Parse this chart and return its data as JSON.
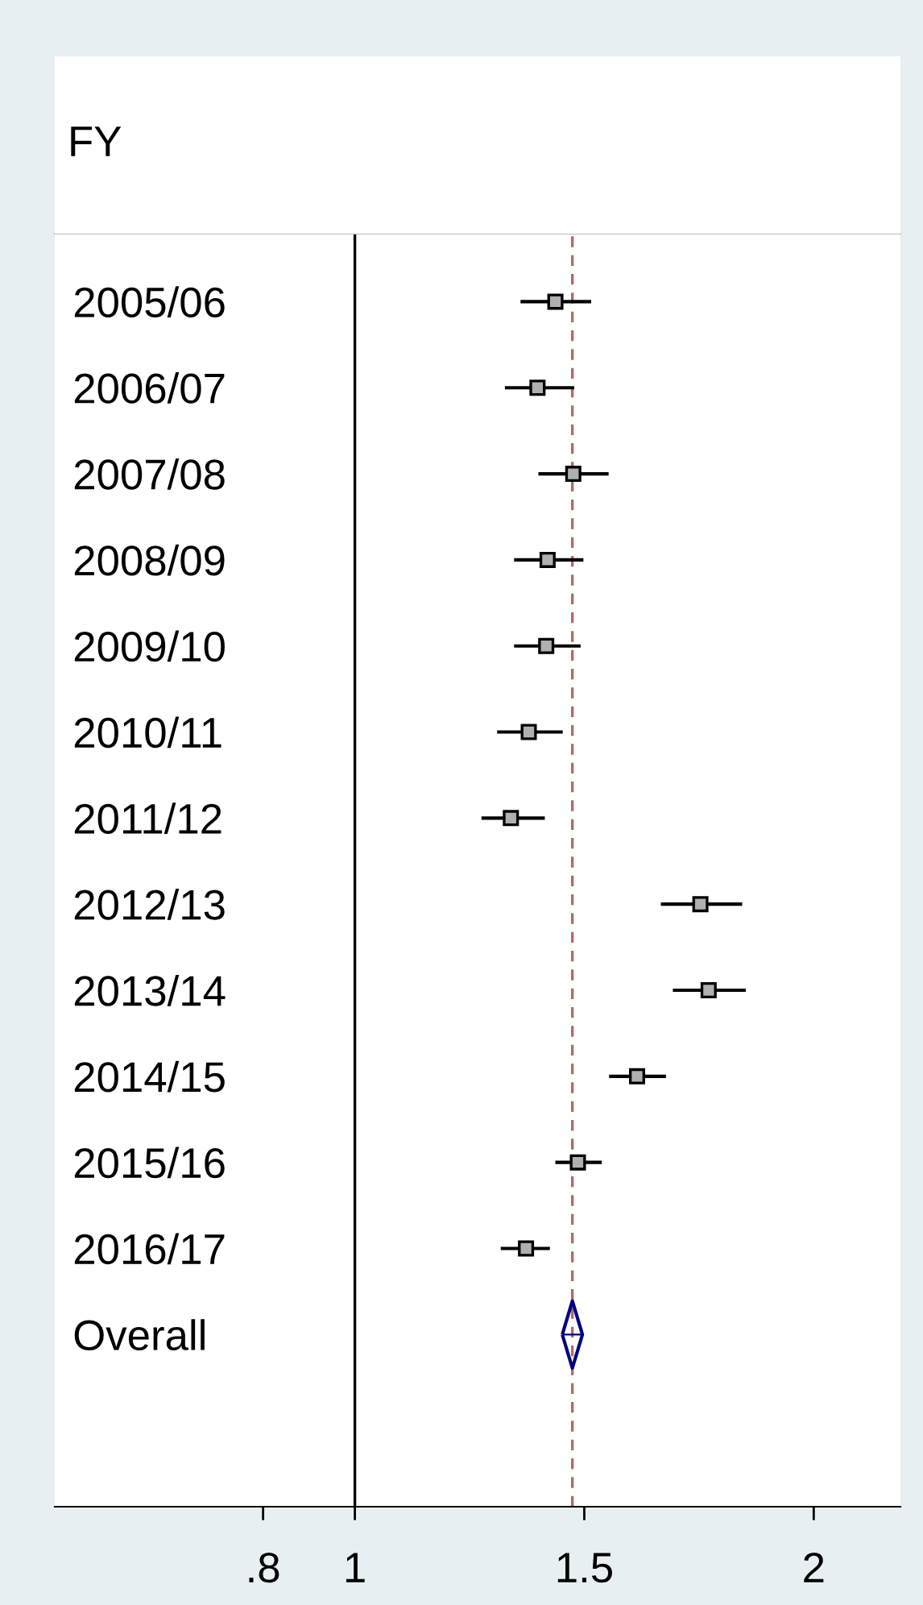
{
  "chart_data": {
    "type": "scatter",
    "orientation": "horizontal",
    "ylabel": "FY",
    "categories": [
      "2005/06",
      "2006/07",
      "2007/08",
      "2008/09",
      "2009/10",
      "2010/11",
      "2011/12",
      "2012/13",
      "2013/14",
      "2014/15",
      "2015/16",
      "2016/17",
      "Overall"
    ],
    "series": [
      {
        "color": "#000000",
        "marker": "square",
        "values": [
          1.437,
          1.398,
          1.476,
          1.42,
          1.417,
          1.379,
          1.34,
          1.753,
          1.771,
          1.615,
          1.486,
          1.373,
          null
        ],
        "errors": [
          [
            1.361,
            1.515
          ],
          [
            1.327,
            1.478
          ],
          [
            1.4,
            1.553
          ],
          [
            1.347,
            1.498
          ],
          [
            1.347,
            1.492
          ],
          [
            1.31,
            1.453
          ],
          [
            1.276,
            1.414
          ],
          [
            1.667,
            1.844
          ],
          [
            1.693,
            1.852
          ],
          [
            1.554,
            1.678
          ],
          [
            1.437,
            1.538
          ],
          [
            1.318,
            1.425
          ],
          null
        ]
      },
      {
        "color": "#000080",
        "marker": "diamond",
        "values": [
          null,
          null,
          null,
          null,
          null,
          null,
          null,
          null,
          null,
          null,
          null,
          null,
          1.474
        ],
        "errors": [
          null,
          null,
          null,
          null,
          null,
          null,
          null,
          null,
          null,
          null,
          null,
          null,
          [
            1.452,
            1.495
          ]
        ]
      }
    ],
    "xlim": [
      0.346,
      2.189
    ],
    "xticks": [
      {
        "value": 0.8,
        "label": ".8"
      },
      1,
      1.5,
      2
    ],
    "ref_lines": [
      {
        "axis": "x",
        "value": 1,
        "color": "#000000",
        "line_style": "solid"
      },
      {
        "axis": "x",
        "value": 1.474,
        "color": "#b06a6a",
        "line_style": "dashed"
      }
    ],
    "grid": false,
    "legend": false
  }
}
